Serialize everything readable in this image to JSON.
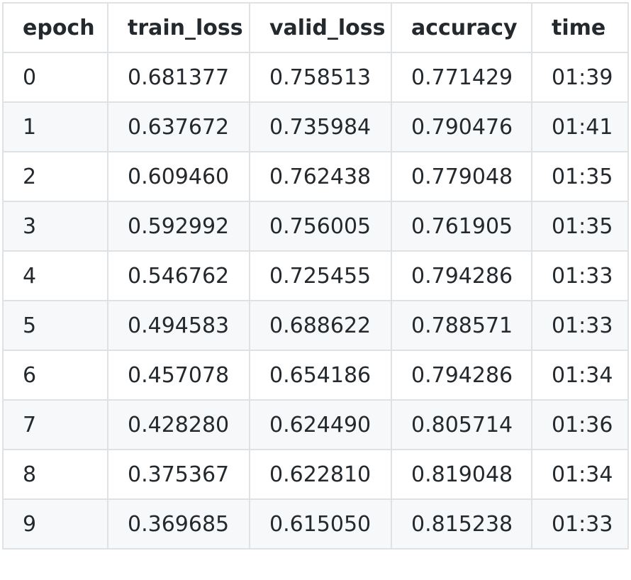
{
  "table": {
    "headers": [
      "epoch",
      "train_loss",
      "valid_loss",
      "accuracy",
      "time"
    ],
    "rows": [
      [
        "0",
        "0.681377",
        "0.758513",
        "0.771429",
        "01:39"
      ],
      [
        "1",
        "0.637672",
        "0.735984",
        "0.790476",
        "01:41"
      ],
      [
        "2",
        "0.609460",
        "0.762438",
        "0.779048",
        "01:35"
      ],
      [
        "3",
        "0.592992",
        "0.756005",
        "0.761905",
        "01:35"
      ],
      [
        "4",
        "0.546762",
        "0.725455",
        "0.794286",
        "01:33"
      ],
      [
        "5",
        "0.494583",
        "0.688622",
        "0.788571",
        "01:33"
      ],
      [
        "6",
        "0.457078",
        "0.654186",
        "0.794286",
        "01:34"
      ],
      [
        "7",
        "0.428280",
        "0.624490",
        "0.805714",
        "01:36"
      ],
      [
        "8",
        "0.375367",
        "0.622810",
        "0.819048",
        "01:34"
      ],
      [
        "9",
        "0.369685",
        "0.615050",
        "0.815238",
        "01:33"
      ]
    ]
  },
  "colors": {
    "border": "#dfe2e5",
    "stripe": "#f6f8fa",
    "text": "#24292e"
  }
}
